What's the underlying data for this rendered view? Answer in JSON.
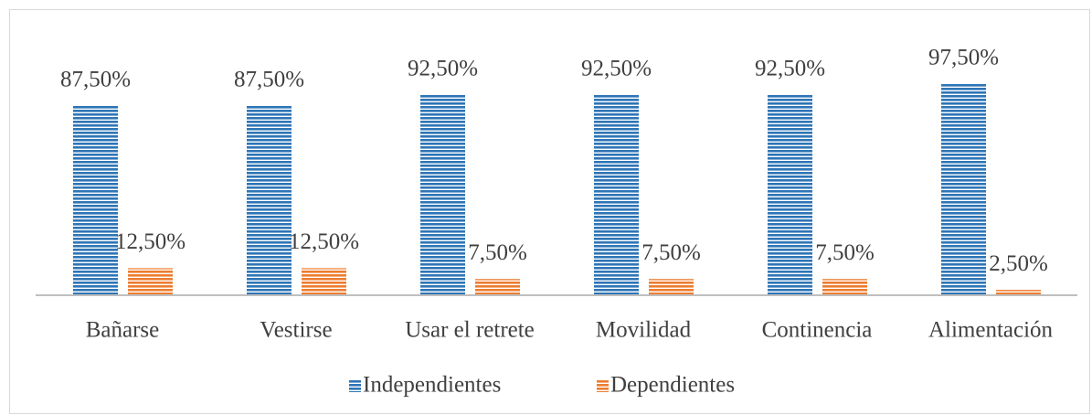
{
  "chart_data": {
    "type": "bar",
    "categories": [
      "Bañarse",
      "Vestirse",
      "Usar el retrete",
      "Movilidad",
      "Continencia",
      "Alimentación"
    ],
    "series": [
      {
        "name": "Independientes",
        "color": "#2e75b6",
        "values": [
          87.5,
          87.5,
          92.5,
          92.5,
          92.5,
          97.5
        ],
        "value_labels": [
          "87,50%",
          "87,50%",
          "92,50%",
          "92,50%",
          "92,50%",
          "97,50%"
        ]
      },
      {
        "name": "Dependientes",
        "color": "#ed7d31",
        "values": [
          12.5,
          12.5,
          7.5,
          7.5,
          7.5,
          2.5
        ],
        "value_labels": [
          "12,50%",
          "12,50%",
          "7,50%",
          "7,50%",
          "7,50%",
          "2,50%"
        ]
      }
    ],
    "ylim": [
      0,
      100
    ],
    "legend": "bottom"
  }
}
